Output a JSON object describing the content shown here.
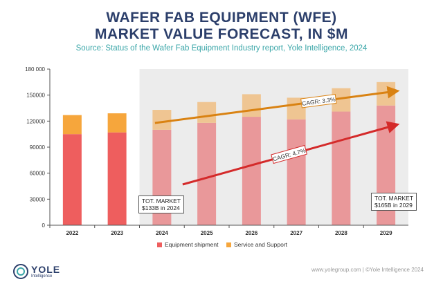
{
  "header": {
    "title_line1": "WAFER FAB EQUIPMENT (WFE)",
    "title_line2": "MARKET VALUE FORECAST, IN $M",
    "source": "Source: Status of the Wafer Fab Equipment Industry report, Yole Intelligence, 2024"
  },
  "chart_data": {
    "type": "bar",
    "stacked": true,
    "categories": [
      "2022",
      "2023",
      "2024",
      "2025",
      "2026",
      "2027",
      "2028",
      "2029"
    ],
    "forecast_start": "2024",
    "ylim": [
      0,
      180000
    ],
    "yticks": [
      0,
      30000,
      60000,
      90000,
      120000,
      150000,
      180000
    ],
    "ytick_labels": [
      "0",
      "30000",
      "60000",
      "90000",
      "120000",
      "150000",
      "180 000"
    ],
    "grid": false,
    "legend_position": "bottom",
    "series": [
      {
        "name": "Equipment shipment",
        "color": "#ee5e5e",
        "forecast_color": "#e9989a",
        "values": [
          105000,
          107000,
          110000,
          118000,
          125000,
          122000,
          131000,
          138000
        ]
      },
      {
        "name": "Service and Support",
        "color": "#f6a63c",
        "forecast_color": "#efc592",
        "values": [
          22000,
          22000,
          23000,
          24000,
          26000,
          25000,
          27000,
          27000
        ]
      }
    ],
    "annotations": [
      {
        "text": "CAGR: 3.3%",
        "color": "#d98212",
        "from": "2024",
        "to": "2029"
      },
      {
        "text": "CAGR: 4.7%",
        "color": "#d42a2a",
        "from": "2024",
        "to": "2029"
      }
    ]
  },
  "callouts": {
    "left_line1": "TOT. MARKET",
    "left_line2": "$133B in 2024",
    "right_line1": "TOT. MARKET",
    "right_line2": "$165B in 2029"
  },
  "logo": {
    "name": "YOLE",
    "sub": "Intelligence"
  },
  "footer": {
    "url": "www.yolegroup.com | ©Yole Intelligence 2024"
  }
}
